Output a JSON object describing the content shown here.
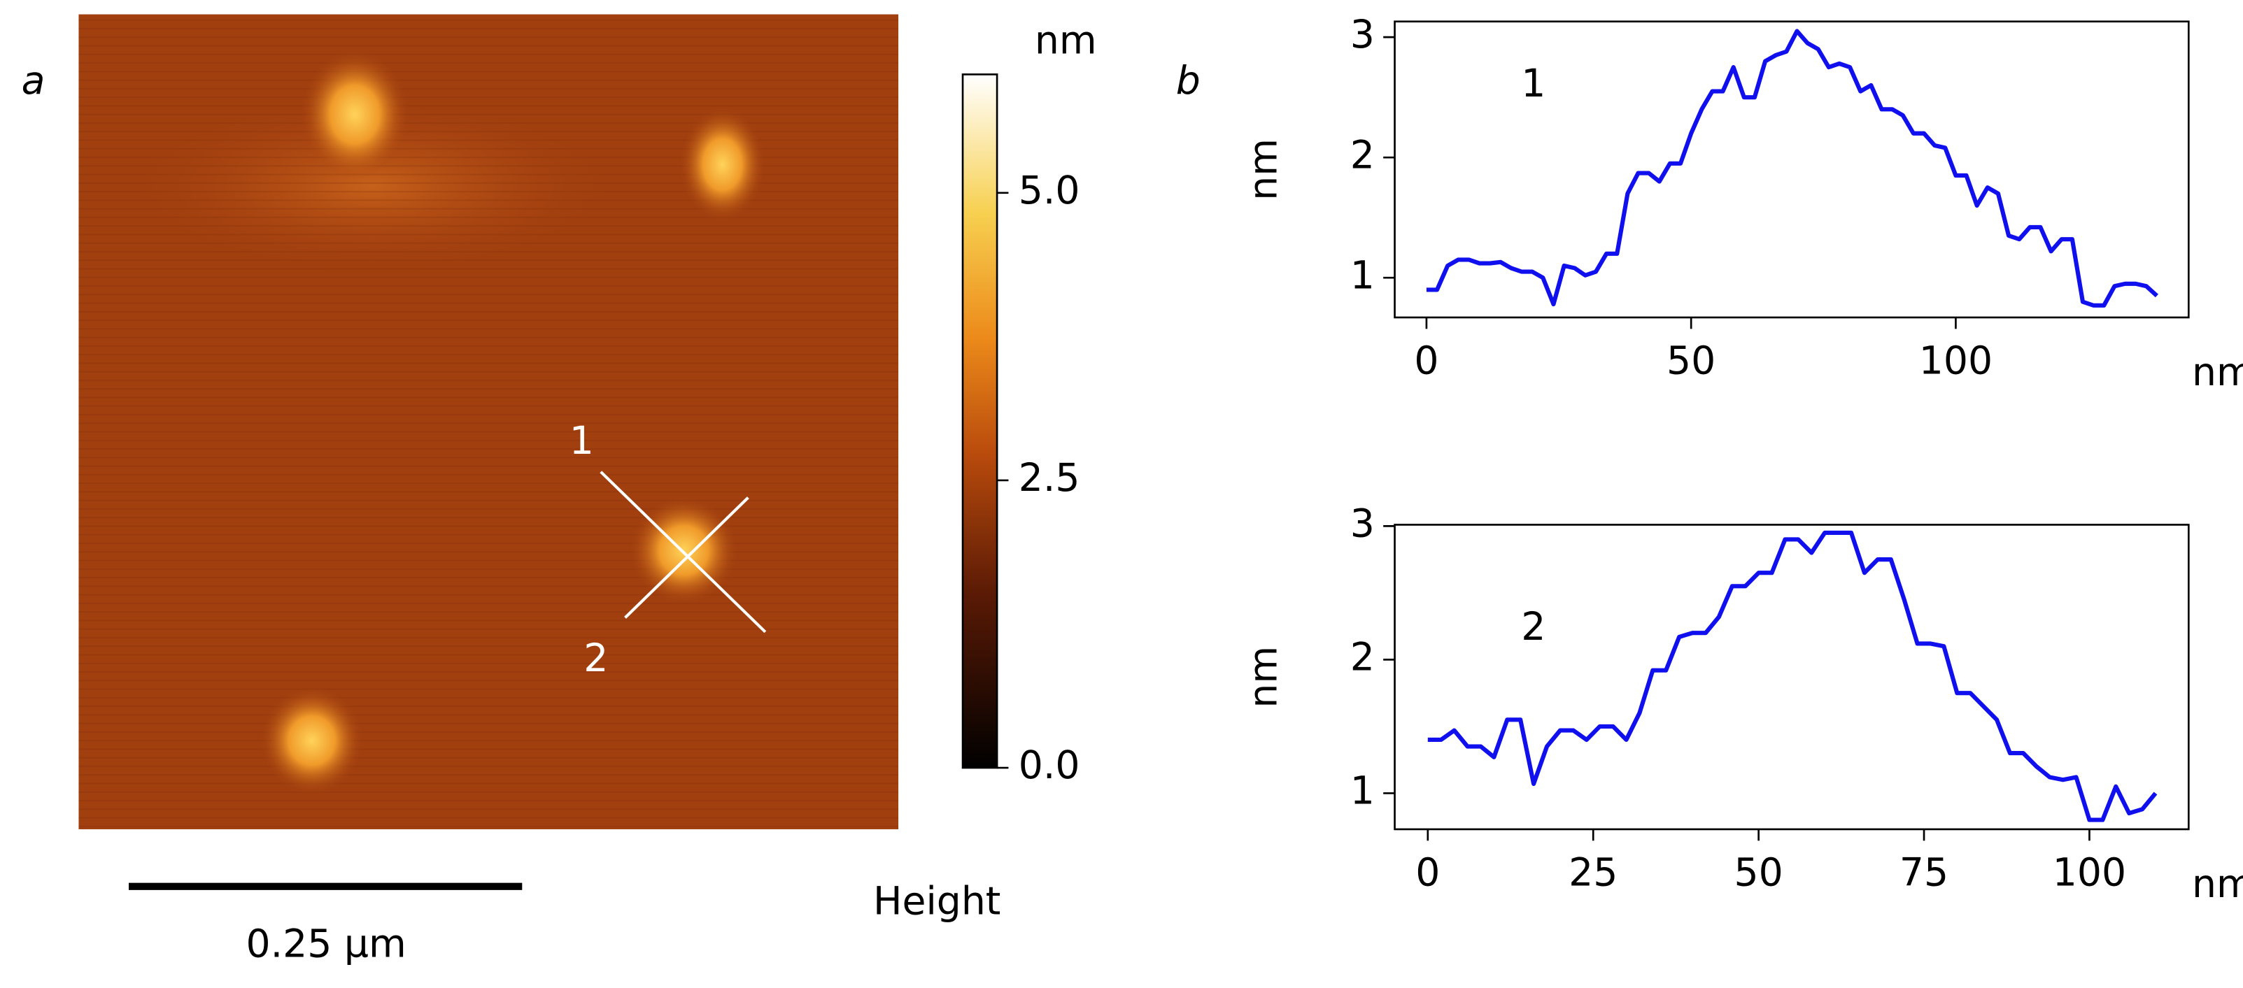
{
  "panel_labels": [
    "a",
    "b"
  ],
  "image": {
    "scale_bar": "0.25 µm",
    "line_labels": [
      "1",
      "2"
    ],
    "colorbar": {
      "unit": "nm",
      "label": "Height",
      "lim": [
        0,
        6.03
      ],
      "ticks": [
        {
          "value": 0,
          "label": "0.0"
        },
        {
          "value": 2.5,
          "label": "2.5"
        },
        {
          "value": 5,
          "label": "5.0"
        }
      ]
    }
  },
  "chart_data": [
    {
      "type": "line",
      "annotation": "1",
      "xlabel": "nm",
      "ylabel": "nm",
      "color": "#1010ee",
      "xlim": [
        -6,
        144
      ],
      "ylim": [
        0.67,
        3.13
      ],
      "xticks": [
        0,
        50,
        100
      ],
      "yticks": [
        1,
        2,
        3
      ],
      "x": [
        0,
        2,
        4,
        6,
        8,
        10,
        12,
        14,
        16,
        18,
        20,
        22,
        24,
        26,
        28,
        30,
        32,
        34,
        36,
        38,
        40,
        42,
        44,
        46,
        48,
        50,
        52,
        54,
        56,
        58,
        60,
        62,
        64,
        66,
        68,
        70,
        72,
        74,
        76,
        78,
        80,
        82,
        84,
        86,
        88,
        90,
        92,
        94,
        96,
        98,
        100,
        102,
        104,
        106,
        108,
        110,
        112,
        114,
        116,
        118,
        120,
        122,
        124,
        126,
        128,
        130,
        132,
        134,
        136,
        138
      ],
      "values": [
        0.9,
        0.9,
        1.1,
        1.15,
        1.15,
        1.12,
        1.12,
        1.13,
        1.08,
        1.05,
        1.05,
        1.0,
        0.78,
        1.1,
        1.08,
        1.02,
        1.05,
        1.2,
        1.2,
        1.7,
        1.87,
        1.87,
        1.8,
        1.95,
        1.95,
        2.2,
        2.4,
        2.55,
        2.55,
        2.75,
        2.5,
        2.5,
        2.8,
        2.85,
        2.88,
        3.05,
        2.95,
        2.9,
        2.75,
        2.78,
        2.75,
        2.55,
        2.6,
        2.4,
        2.4,
        2.35,
        2.2,
        2.2,
        2.1,
        2.08,
        1.85,
        1.85,
        1.6,
        1.75,
        1.7,
        1.35,
        1.32,
        1.42,
        1.42,
        1.22,
        1.32,
        1.32,
        0.8,
        0.77,
        0.77,
        0.93,
        0.95,
        0.95,
        0.93,
        0.85
      ]
    },
    {
      "type": "line",
      "annotation": "2",
      "xlabel": "nm",
      "ylabel": "nm",
      "color": "#1010ee",
      "xlim": [
        -5,
        115
      ],
      "ylim": [
        0.73,
        3.01
      ],
      "xticks": [
        0,
        25,
        50,
        75,
        100
      ],
      "yticks": [
        1,
        2,
        3
      ],
      "x": [
        0,
        2,
        4,
        6,
        8,
        10,
        12,
        14,
        16,
        18,
        20,
        22,
        24,
        26,
        28,
        30,
        32,
        34,
        36,
        38,
        40,
        42,
        44,
        46,
        48,
        50,
        52,
        54,
        56,
        58,
        60,
        62,
        64,
        66,
        68,
        70,
        72,
        74,
        76,
        78,
        80,
        82,
        84,
        86,
        88,
        90,
        92,
        94,
        96,
        98,
        100,
        102,
        104,
        106,
        108,
        110
      ],
      "values": [
        1.4,
        1.4,
        1.47,
        1.35,
        1.35,
        1.27,
        1.55,
        1.55,
        1.07,
        1.35,
        1.47,
        1.47,
        1.4,
        1.5,
        1.5,
        1.4,
        1.6,
        1.92,
        1.92,
        2.17,
        2.2,
        2.2,
        2.32,
        2.55,
        2.55,
        2.65,
        2.65,
        2.9,
        2.9,
        2.8,
        2.95,
        2.95,
        2.95,
        2.65,
        2.75,
        2.75,
        2.45,
        2.12,
        2.12,
        2.1,
        1.75,
        1.75,
        1.65,
        1.55,
        1.3,
        1.3,
        1.2,
        1.12,
        1.1,
        1.12,
        0.8,
        0.8,
        1.05,
        0.85,
        0.88,
        1.0
      ]
    }
  ]
}
